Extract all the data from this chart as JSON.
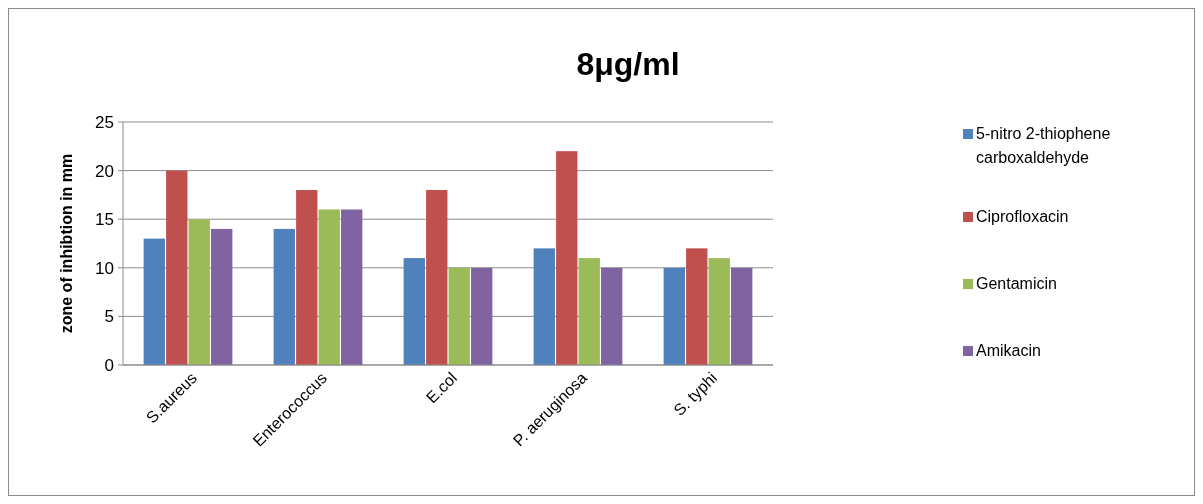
{
  "chart_data": {
    "type": "bar",
    "title": "8μg/ml",
    "ylabel": "zone of inhibtion in mm",
    "categories": [
      "S.aureus",
      "Enterococcus",
      "E.col",
      "P. aeruginosa",
      "S. typhi"
    ],
    "series": [
      {
        "name": "5-nitro 2-thiophene carboxaldehyde",
        "color": "#4f81bd",
        "values": [
          13,
          14,
          11,
          12,
          10
        ]
      },
      {
        "name": "Ciprofloxacin",
        "color": "#c0504d",
        "values": [
          20,
          18,
          18,
          22,
          12
        ]
      },
      {
        "name": "Gentamicin",
        "color": "#9bbb59",
        "values": [
          15,
          16,
          10,
          11,
          11
        ]
      },
      {
        "name": "Amikacin",
        "color": "#8064a2",
        "values": [
          14,
          16,
          10,
          10,
          10
        ]
      }
    ],
    "ylim": [
      0,
      25
    ],
    "yticks": [
      0,
      5,
      10,
      15,
      20,
      25
    ],
    "grid": "y",
    "legend": "right"
  }
}
